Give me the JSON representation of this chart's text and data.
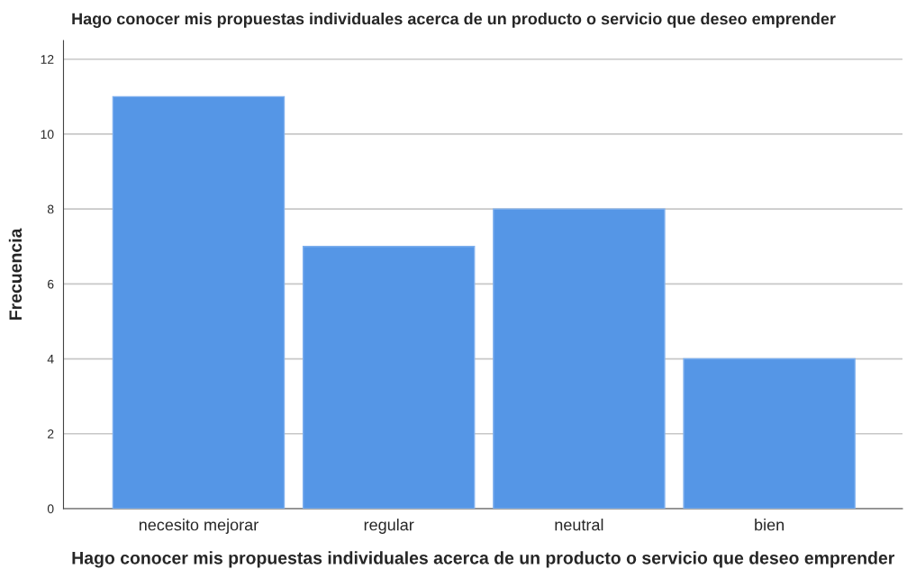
{
  "chart_data": {
    "type": "bar",
    "title": "Hago conocer mis propuestas individuales acerca de un producto o servicio que deseo emprender",
    "xlabel": "Hago conocer mis propuestas individuales acerca de un producto o servicio que deseo emprender",
    "ylabel": "Frecuencia",
    "categories": [
      "necesito mejorar",
      "regular",
      "neutral",
      "bien"
    ],
    "values": [
      11,
      7,
      8,
      4
    ],
    "color": "#5596e6",
    "ylim": [
      0,
      12.5
    ],
    "yticks": [
      0,
      2,
      4,
      6,
      8,
      10,
      12
    ],
    "grid": "y"
  }
}
